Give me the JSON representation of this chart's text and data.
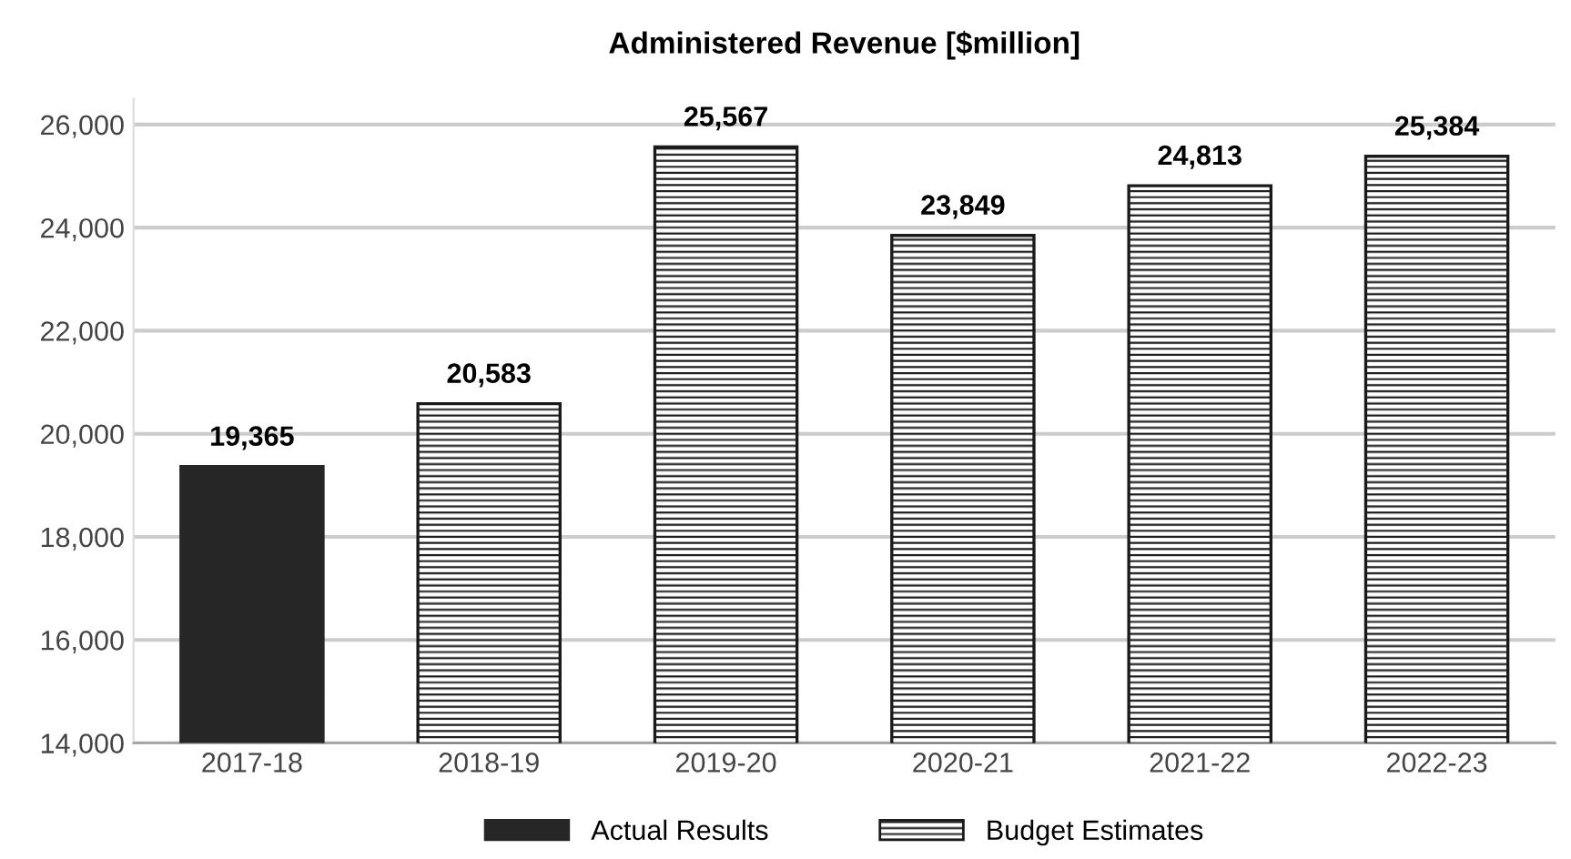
{
  "chart_data": {
    "type": "bar",
    "title": "Administered Revenue [$million]",
    "categories": [
      "2017-18",
      "2018-19",
      "2019-20",
      "2020-21",
      "2021-22",
      "2022-23"
    ],
    "series": [
      {
        "name": "Actual Results",
        "color": "#262626",
        "values": [
          19365,
          null,
          null,
          null,
          null,
          null
        ],
        "value_labels": [
          "19,365",
          null,
          null,
          null,
          null,
          null
        ]
      },
      {
        "name": "Budget Estimates",
        "color": "#1a1a1a",
        "values": [
          null,
          20583,
          25567,
          23849,
          24813,
          25384
        ],
        "value_labels": [
          null,
          "20,583",
          "25,567",
          "23,849",
          "24,813",
          "25,384"
        ]
      }
    ],
    "ylim": [
      14000,
      26500
    ],
    "yticks": [
      {
        "value": 14000,
        "label": "14,000"
      },
      {
        "value": 16000,
        "label": "16,000"
      },
      {
        "value": 18000,
        "label": "18,000"
      },
      {
        "value": 20000,
        "label": "20,000"
      },
      {
        "value": 22000,
        "label": "22,000"
      },
      {
        "value": 24000,
        "label": "24,000"
      },
      {
        "value": 26000,
        "label": "26,000"
      }
    ],
    "grid": "y",
    "legend": "bottom"
  }
}
